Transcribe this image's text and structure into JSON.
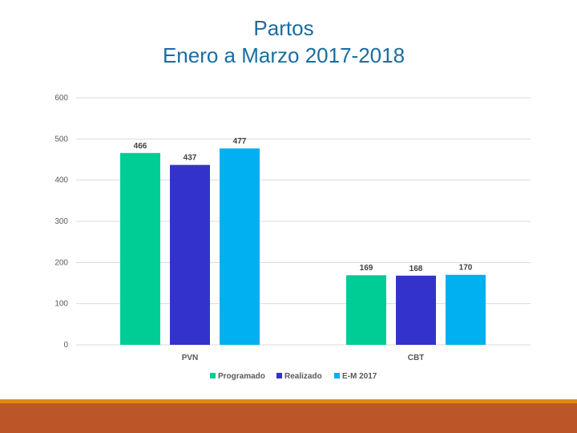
{
  "slide": {
    "title_line1": "Partos",
    "title_line2": "Enero a Marzo 2017-2018"
  },
  "colors": {
    "title": "#1a6d9e",
    "footer_line": "#e0890f",
    "footer_bar": "#bc5626"
  },
  "chart_data": {
    "type": "bar",
    "categories": [
      "PVN",
      "CBT"
    ],
    "series": [
      {
        "name": "Programado",
        "values": [
          466,
          169
        ],
        "color": "#00cc96"
      },
      {
        "name": "Realizado",
        "values": [
          437,
          168
        ],
        "color": "#3333cc"
      },
      {
        "name": "E-M 2017",
        "values": [
          477,
          170
        ],
        "color": "#00b0f0"
      }
    ],
    "ylim": [
      0,
      600
    ],
    "yticks": [
      0,
      100,
      200,
      300,
      400,
      500,
      600
    ],
    "grid": true,
    "legend": "bottom",
    "data_labels": true
  }
}
